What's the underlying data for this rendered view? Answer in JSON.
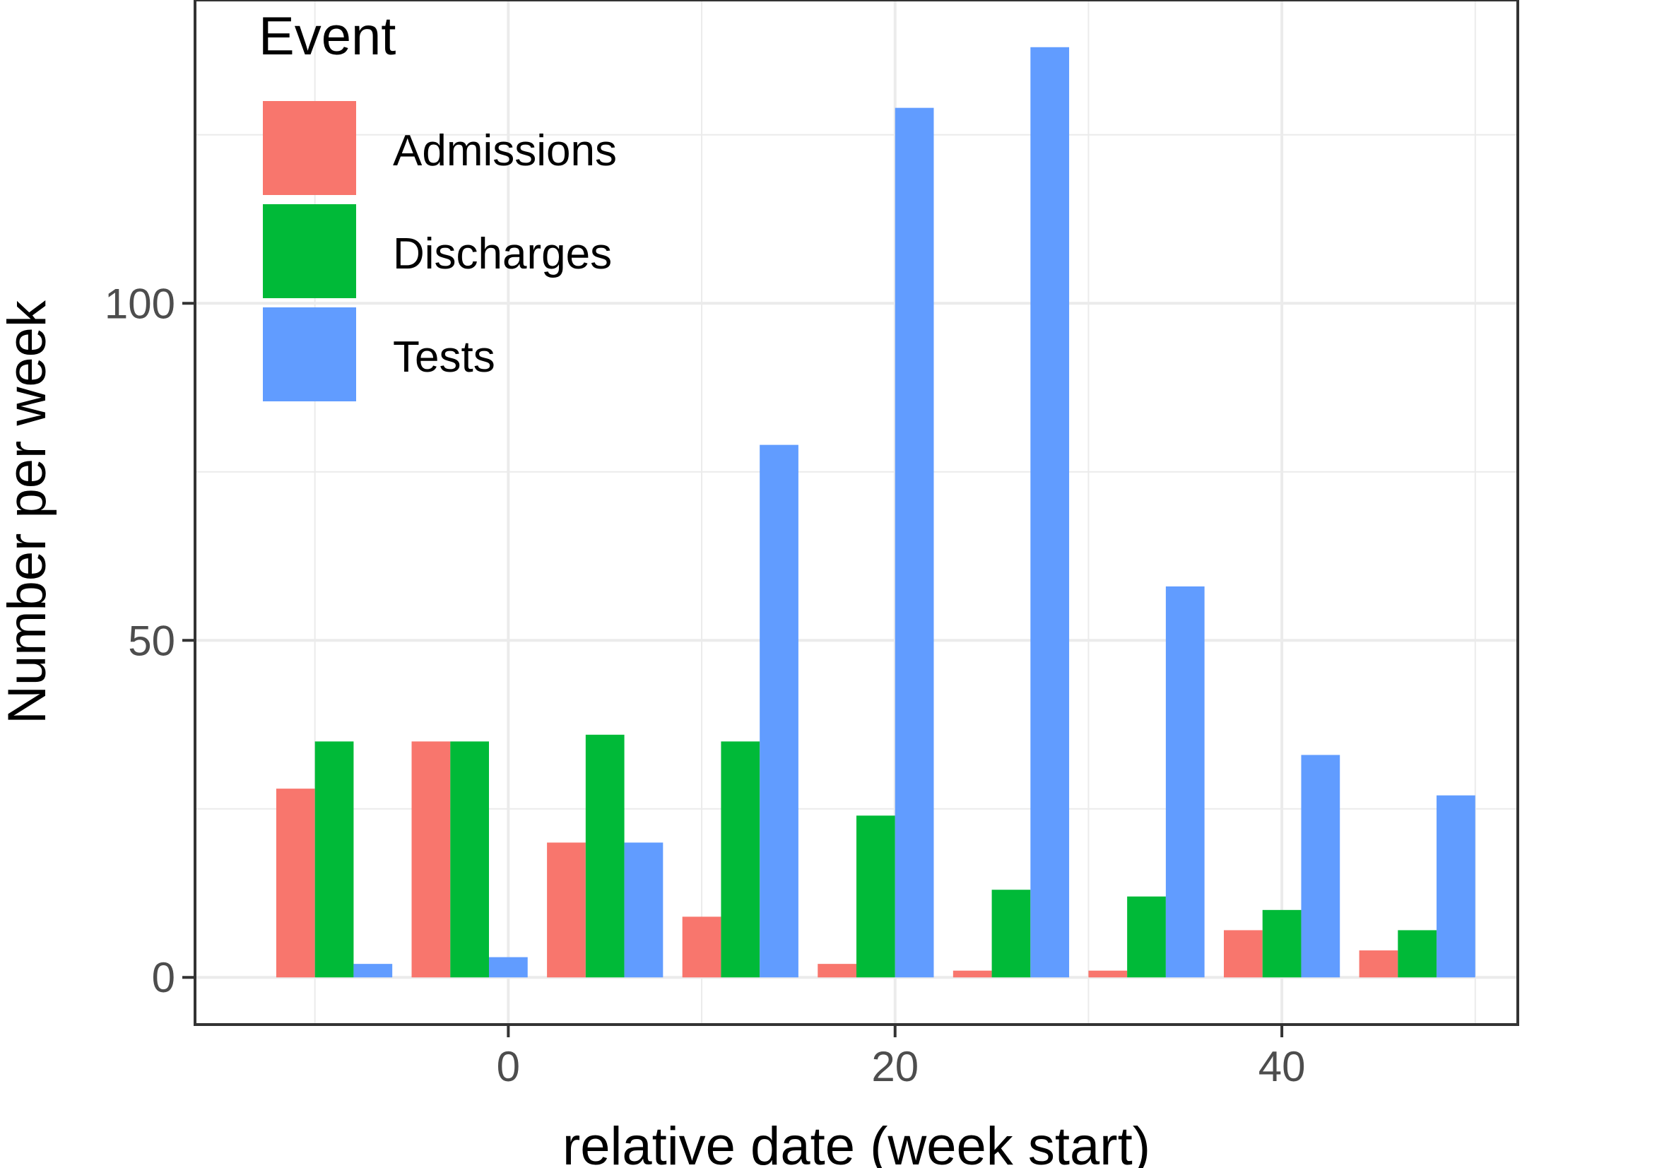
{
  "chart_data": {
    "type": "bar",
    "xlabel": "relative date (week start)",
    "ylabel": "Number per week",
    "x": [
      -9,
      -2,
      5,
      12,
      19,
      26,
      33,
      40,
      47
    ],
    "xlim": [
      -16.2,
      52.2
    ],
    "ylim": [
      -7,
      145
    ],
    "x_ticks": [
      0,
      20,
      40
    ],
    "x_tick_labels": [
      "0",
      "20",
      "40"
    ],
    "x_minor_ticks": [
      -10,
      10,
      30,
      50
    ],
    "y_ticks": [
      0,
      50,
      100
    ],
    "y_tick_labels": [
      "0",
      "50",
      "100"
    ],
    "y_minor_ticks": [
      25,
      75,
      125
    ],
    "grid": true,
    "legend": {
      "title": "Event",
      "position": "top-left"
    },
    "series": [
      {
        "name": "Admissions",
        "color": "#F8766D",
        "values": [
          28,
          35,
          20,
          9,
          2,
          1,
          1,
          7,
          4
        ]
      },
      {
        "name": "Discharges",
        "color": "#00BA38",
        "values": [
          35,
          35,
          36,
          35,
          24,
          13,
          12,
          10,
          7
        ]
      },
      {
        "name": "Tests",
        "color": "#619CFF",
        "values": [
          2,
          3,
          20,
          79,
          129,
          138,
          58,
          33,
          27
        ]
      }
    ]
  }
}
